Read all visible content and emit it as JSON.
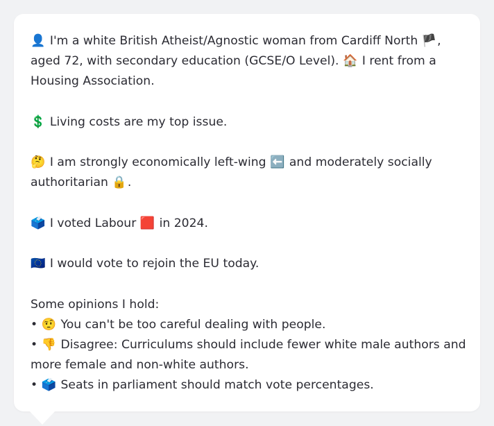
{
  "profile": {
    "intro": {
      "icon": "👤",
      "text_1": " I'm a white British Atheist/Agnostic woman from Cardiff North ",
      "flag": "🏴",
      "text_2": ", aged 72, with secondary education (GCSE/O Level). ",
      "house_icon": "🏠",
      "text_3": " I rent from a Housing Association."
    },
    "top_issue": {
      "icon": "💲",
      "text": " Living costs are my top issue."
    },
    "politics": {
      "icon": "🤔",
      "text_1": " I am strongly economically left-wing ",
      "arrow_icon": "⬅️",
      "text_2": " and moderately socially authoritarian ",
      "lock_icon": "🔒",
      "text_3": "."
    },
    "vote": {
      "icon": "🗳️",
      "text_1": " I voted Labour ",
      "party_icon": "🟥",
      "text_2": " in 2024."
    },
    "eu": {
      "icon": "🇪🇺",
      "text": " I would vote to rejoin the EU today."
    },
    "opinions": {
      "heading": "Some opinions I hold:",
      "bullet": "•",
      "items": [
        {
          "icon": "🤨",
          "text": " You can't be too careful dealing with people."
        },
        {
          "icon": "👎",
          "text": " Disagree: Curriculums should include fewer white male authors and more female and non-white authors."
        },
        {
          "icon": "🗳️",
          "text": " Seats in parliament should match vote percentages."
        }
      ]
    }
  }
}
